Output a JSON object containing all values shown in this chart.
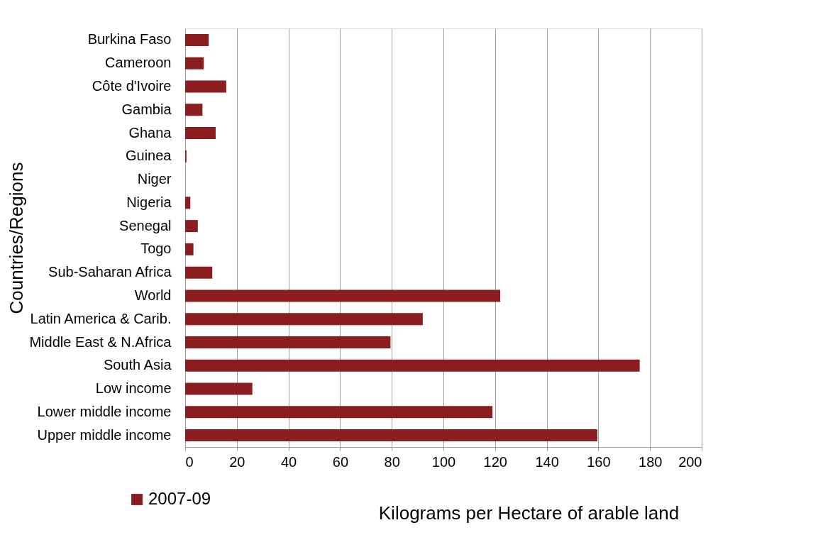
{
  "chart_data": {
    "type": "bar",
    "orientation": "horizontal",
    "ylabel": "Countries/Regions",
    "xlabel": "Kilograms per Hectare of arable land",
    "categories": [
      "Burkina Faso",
      "Cameroon",
      "Côte d'Ivoire",
      "Gambia",
      "Ghana",
      "Guinea",
      "Niger",
      "Nigeria",
      "Senegal",
      "Togo",
      "Sub-Saharan Africa",
      "World",
      "Latin America & Carib.",
      "Middle East & N.Africa",
      "South Asia",
      "Low income",
      "Lower middle income",
      "Upper middle income"
    ],
    "series": [
      {
        "name": "2007-09",
        "color": "#8b1c1f",
        "values": [
          9.1,
          7.2,
          15.9,
          6.7,
          11.8,
          0.5,
          0,
          2.0,
          4.9,
          3.2,
          10.5,
          122,
          92,
          79.5,
          176,
          26,
          119,
          159.6
        ]
      }
    ],
    "xlim": [
      0,
      200
    ],
    "xticks": [
      0,
      20,
      40,
      60,
      80,
      100,
      120,
      140,
      160,
      180,
      200
    ],
    "grid": "x",
    "legend": "bottom"
  }
}
